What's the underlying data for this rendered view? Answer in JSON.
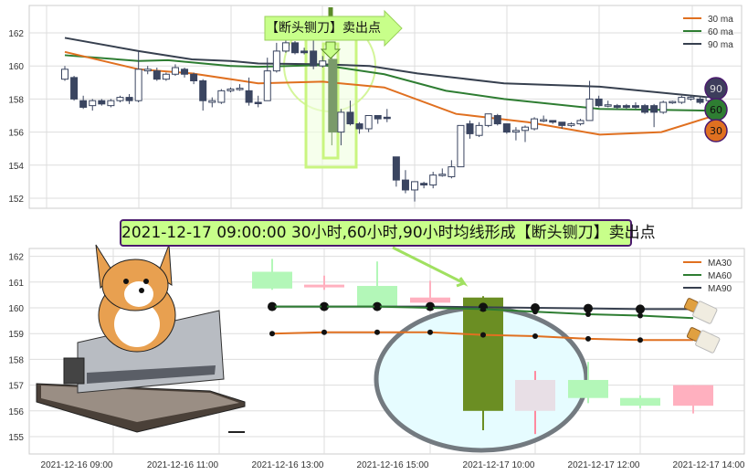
{
  "top_chart": {
    "annotation": "【断头铡刀】卖出点",
    "chart_data": {
      "type": "candlestick",
      "ylim": [
        151.3,
        163.5
      ],
      "yticks": [
        "152",
        "154",
        "156",
        "158",
        "160",
        "162"
      ],
      "legend": [
        "30 ma",
        "60 ma",
        "90 ma"
      ],
      "legend_placement": "top-right",
      "grid": true,
      "colors": {
        "up": "#ffffff",
        "down": "#3a4560",
        "ma30": "#e07020",
        "ma60": "#2e7d32",
        "ma90": "#37404f",
        "highlight": "#7a9a6a"
      },
      "candles": [
        [
          159.2,
          159.8,
          160.0,
          159.1
        ],
        [
          159.3,
          158.0,
          159.4,
          157.9
        ],
        [
          157.9,
          157.5,
          158.2,
          157.4
        ],
        [
          157.6,
          157.9,
          158.0,
          157.3
        ],
        [
          157.9,
          157.7,
          158.0,
          157.6
        ],
        [
          157.6,
          157.9,
          158.0,
          157.5
        ],
        [
          157.9,
          158.1,
          158.2,
          157.8
        ],
        [
          158.1,
          157.9,
          158.3,
          157.7
        ],
        [
          157.9,
          159.8,
          160.9,
          157.8
        ],
        [
          159.7,
          159.8,
          160.0,
          159.5
        ],
        [
          159.7,
          159.2,
          159.9,
          159.1
        ],
        [
          159.2,
          159.5,
          159.6,
          159.1
        ],
        [
          159.5,
          159.9,
          160.1,
          159.4
        ],
        [
          159.8,
          159.5,
          159.9,
          159.3
        ],
        [
          159.5,
          159.1,
          159.6,
          158.9
        ],
        [
          159.1,
          157.9,
          159.2,
          157.3
        ],
        [
          157.8,
          157.9,
          158.1,
          157.5
        ],
        [
          157.8,
          158.5,
          158.6,
          157.7
        ],
        [
          158.5,
          158.6,
          158.7,
          158.4
        ],
        [
          158.6,
          158.65,
          158.9,
          158.5
        ],
        [
          158.5,
          157.8,
          159.3,
          157.6
        ],
        [
          157.8,
          157.75,
          158.2,
          157.5
        ],
        [
          157.9,
          159.7,
          160.5,
          157.9
        ],
        [
          159.7,
          160.9,
          161.4,
          159.6
        ],
        [
          160.9,
          161.4,
          161.7,
          160.8
        ],
        [
          161.4,
          160.8,
          161.5,
          160.7
        ],
        [
          160.9,
          160.8,
          161.1,
          160.7
        ],
        [
          160.9,
          160.0,
          161.9,
          159.8
        ],
        [
          160.0,
          160.3,
          160.6,
          159.9
        ],
        [
          160.4,
          156.0,
          160.5,
          155.2
        ],
        [
          156.0,
          157.2,
          157.4,
          155.2
        ],
        [
          157.2,
          156.5,
          157.9,
          156.4
        ],
        [
          156.5,
          156.2,
          156.6,
          155.9
        ],
        [
          156.2,
          157.0,
          157.0,
          156.0
        ],
        [
          157.0,
          156.8,
          157.0,
          156.5
        ],
        [
          156.9,
          156.85,
          157.4,
          156.6
        ],
        [
          154.5,
          153.1,
          154.5,
          152.7
        ],
        [
          153.1,
          152.5,
          153.7,
          152.3
        ],
        [
          152.5,
          153.0,
          153.0,
          151.8
        ],
        [
          152.9,
          152.8,
          153.0,
          152.6
        ],
        [
          152.8,
          153.4,
          153.6,
          152.6
        ],
        [
          153.4,
          153.45,
          153.8,
          153.3
        ],
        [
          153.3,
          153.9,
          154.3,
          153.2
        ],
        [
          153.9,
          156.4,
          156.4,
          153.9
        ],
        [
          156.5,
          155.9,
          156.7,
          155.6
        ],
        [
          155.8,
          156.4,
          156.6,
          155.7
        ],
        [
          156.4,
          157.1,
          157.1,
          156.3
        ],
        [
          157.0,
          156.5,
          157.1,
          156.4
        ],
        [
          156.5,
          156.0,
          156.5,
          155.9
        ],
        [
          156.0,
          156.1,
          156.3,
          155.5
        ],
        [
          156.1,
          156.3,
          156.4,
          155.4
        ],
        [
          156.2,
          156.8,
          156.9,
          156.1
        ],
        [
          156.7,
          156.75,
          157.0,
          156.6
        ],
        [
          156.7,
          156.6,
          156.7,
          156.5
        ],
        [
          156.6,
          156.4,
          156.6,
          156.2
        ],
        [
          156.4,
          156.5,
          156.6,
          156.3
        ],
        [
          156.5,
          156.7,
          156.8,
          156.4
        ],
        [
          156.7,
          158.0,
          159.1,
          156.7
        ],
        [
          158.0,
          157.6,
          158.2,
          157.5
        ],
        [
          157.6,
          157.65,
          157.9,
          157.5
        ],
        [
          157.6,
          157.5,
          157.7,
          157.4
        ],
        [
          157.6,
          157.5,
          157.7,
          157.4
        ],
        [
          157.6,
          157.5,
          157.8,
          157.4
        ],
        [
          157.6,
          157.2,
          157.7,
          157.1
        ],
        [
          157.6,
          157.2,
          157.7,
          156.3
        ],
        [
          157.2,
          157.8,
          157.9,
          157.1
        ],
        [
          157.8,
          157.85,
          157.9,
          157.7
        ],
        [
          157.8,
          158.1,
          158.2,
          157.7
        ],
        [
          158.0,
          158.1,
          158.2,
          157.9
        ],
        [
          158.0,
          157.8,
          158.1,
          157.7
        ],
        [
          157.9,
          158.1,
          158.2,
          157.8
        ]
      ],
      "ma30": [
        [
          0,
          160.85
        ],
        [
          8,
          159.8
        ],
        [
          13.8,
          159.55
        ],
        [
          21,
          158.95
        ],
        [
          28,
          159.05
        ],
        [
          34.7,
          158.7
        ],
        [
          42.5,
          157.1
        ],
        [
          50.3,
          156.6
        ],
        [
          58.1,
          155.85
        ],
        [
          64.8,
          156.0
        ],
        [
          70,
          156.9
        ]
      ],
      "ma60": [
        [
          0,
          160.65
        ],
        [
          8,
          160.3
        ],
        [
          11.2,
          160.35
        ],
        [
          18,
          160.0
        ],
        [
          21,
          159.95
        ],
        [
          28,
          160.05
        ],
        [
          34.7,
          159.5
        ],
        [
          41.4,
          158.5
        ],
        [
          47.7,
          158.0
        ],
        [
          58.1,
          157.4
        ],
        [
          70,
          157.3
        ]
      ],
      "ma90": [
        [
          0,
          161.7
        ],
        [
          8,
          160.9
        ],
        [
          13.8,
          160.4
        ],
        [
          18,
          160.3
        ],
        [
          21,
          160.15
        ],
        [
          28,
          160.1
        ],
        [
          33.1,
          160.0
        ],
        [
          38.3,
          159.55
        ],
        [
          47.7,
          158.95
        ],
        [
          58.1,
          158.75
        ],
        [
          70,
          158.1
        ]
      ],
      "end_badges": [
        "90",
        "60",
        "30"
      ]
    }
  },
  "banner": "2021-12-17 09:00:00 30小时,60小时,90小时均线形成【断头铡刀】卖出点",
  "bottom_chart": {
    "chart_data": {
      "type": "candlestick",
      "ylim": [
        154.2,
        162.2
      ],
      "yticks": [
        "155",
        "156",
        "157",
        "158",
        "159",
        "160",
        "161",
        "162"
      ],
      "xticks": [
        "2021-12-16 09:00",
        "2021-12-16 11:00",
        "2021-12-16 13:00",
        "2021-12-16 15:00",
        "2021-12-17 10:00",
        "2021-12-17 12:00",
        "2021-12-17 14:00"
      ],
      "legend": [
        "MA30",
        "MA60",
        "MA90"
      ],
      "legend_placement": "top-right",
      "grid": true,
      "colors": {
        "up": "#b3f7b8",
        "down": "#ffb0bf",
        "highlight": "#6b8e23",
        "neutral": "#e8dfe6",
        "ma30": "#e07020",
        "ma60": "#2e7d32",
        "ma90": "#37404f",
        "oval_fill": "#e6fcff",
        "oval_stroke": "#737a80"
      },
      "candles": [
        {
          "o": 160.75,
          "c": 161.4,
          "h": 161.9,
          "l": 160.7,
          "color": "up"
        },
        {
          "o": 160.9,
          "c": 160.8,
          "h": 161.25,
          "l": 160.7,
          "color": "down"
        },
        {
          "o": 160.05,
          "c": 160.85,
          "h": 161.8,
          "l": 160.0,
          "color": "up"
        },
        {
          "o": 160.4,
          "c": 160.2,
          "h": 161.05,
          "l": 160.1,
          "color": "down"
        },
        {
          "o": 160.4,
          "c": 156.0,
          "h": 160.45,
          "l": 155.25,
          "color": "highlight"
        },
        {
          "o": 157.2,
          "c": 156.0,
          "h": 157.55,
          "l": 155.1,
          "color": "neutral"
        },
        {
          "o": 157.2,
          "c": 156.5,
          "h": 157.9,
          "l": 156.3,
          "color": "up"
        },
        {
          "o": 156.5,
          "c": 156.2,
          "h": 156.6,
          "l": 156.1,
          "color": "up"
        },
        {
          "o": 157.0,
          "c": 156.2,
          "h": 157.0,
          "l": 155.9,
          "color": "down"
        }
      ],
      "ma30": [
        159.0,
        159.05,
        159.05,
        159.05,
        158.95,
        158.9,
        158.8,
        158.75,
        158.75
      ],
      "ma60": [
        160.05,
        160.05,
        160.05,
        160.0,
        159.95,
        159.85,
        159.75,
        159.7,
        159.6
      ],
      "ma90": [
        160.05,
        160.05,
        160.05,
        160.05,
        160.02,
        160.0,
        159.98,
        159.95,
        159.95
      ]
    }
  }
}
